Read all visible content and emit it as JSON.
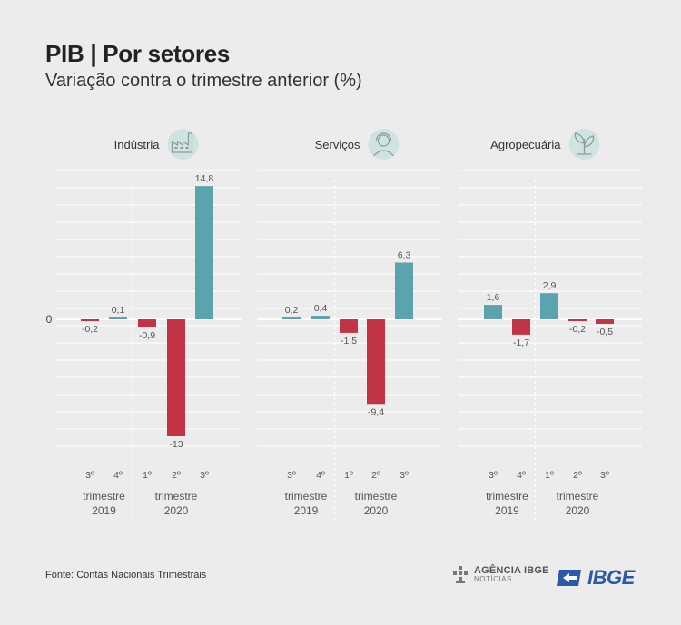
{
  "title": "PIB | Por setores",
  "subtitle": "Variação contra o trimestre anterior (%)",
  "source": "Fonte: Contas Nacionais Trimestrais",
  "logos": {
    "agencia_line1": "AGÊNCIA IBGE",
    "agencia_line2": "NOTÍCIAS",
    "ibge": "IBGE"
  },
  "colors": {
    "positive": "#5ba3ae",
    "negative": "#c23445",
    "background": "#ececec",
    "icon_circle": "#cfe3e2",
    "ibge_blue": "#2c5aa8"
  },
  "chart_data": {
    "type": "bar",
    "zero_label": "0",
    "ylim": [
      -15,
      15
    ],
    "grid": true,
    "x_groups": [
      {
        "year_line1": "trimestre",
        "year_line2": "2019",
        "quarters": [
          "3º",
          "4º"
        ]
      },
      {
        "year_line1": "trimestre",
        "year_line2": "2020",
        "quarters": [
          "1º",
          "2º",
          "3º"
        ]
      }
    ],
    "panels": [
      {
        "name": "Indústria",
        "icon": "factory-icon",
        "values": [
          -0.2,
          0.1,
          -0.9,
          -13,
          14.8
        ],
        "labels": [
          "-0,2",
          "0,1",
          "-0,9",
          "-13",
          "14,8"
        ]
      },
      {
        "name": "Serviços",
        "icon": "customer-service-icon",
        "values": [
          0.2,
          0.4,
          -1.5,
          -9.4,
          6.3
        ],
        "labels": [
          "0,2",
          "0,4",
          "-1,5",
          "-9,4",
          "6,3"
        ]
      },
      {
        "name": "Agropecuária",
        "icon": "plant-icon",
        "values": [
          1.6,
          -1.7,
          2.9,
          -0.2,
          -0.5
        ],
        "labels": [
          "1,6",
          "-1,7",
          "2,9",
          "-0,2",
          "-0,5"
        ]
      }
    ]
  }
}
